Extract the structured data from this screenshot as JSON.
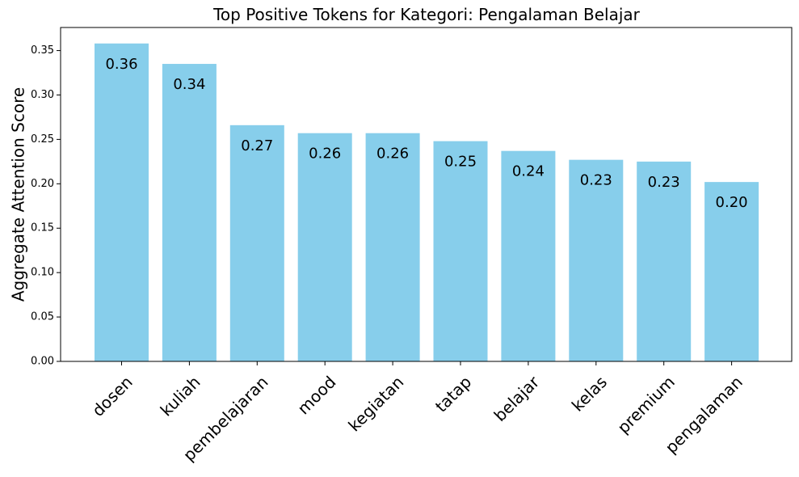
{
  "chart_data": {
    "type": "bar",
    "title": "Top Positive Tokens for Kategori: Pengalaman Belajar",
    "xlabel": "",
    "ylabel": "Aggregate Attention Score",
    "categories": [
      "dosen",
      "kuliah",
      "pembelajaran",
      "mood",
      "kegiatan",
      "tatap",
      "belajar",
      "kelas",
      "premium",
      "pengalaman"
    ],
    "values": [
      0.358,
      0.335,
      0.266,
      0.257,
      0.257,
      0.248,
      0.237,
      0.227,
      0.225,
      0.202
    ],
    "data_labels": [
      "0.36",
      "0.34",
      "0.27",
      "0.26",
      "0.26",
      "0.25",
      "0.24",
      "0.23",
      "0.23",
      "0.20"
    ],
    "yticks": [
      "0.00",
      "0.05",
      "0.10",
      "0.15",
      "0.20",
      "0.25",
      "0.30",
      "0.35"
    ],
    "ylim": [
      0,
      0.376
    ],
    "bar_color": "#87CEEB",
    "grid": false,
    "legend": "none"
  }
}
